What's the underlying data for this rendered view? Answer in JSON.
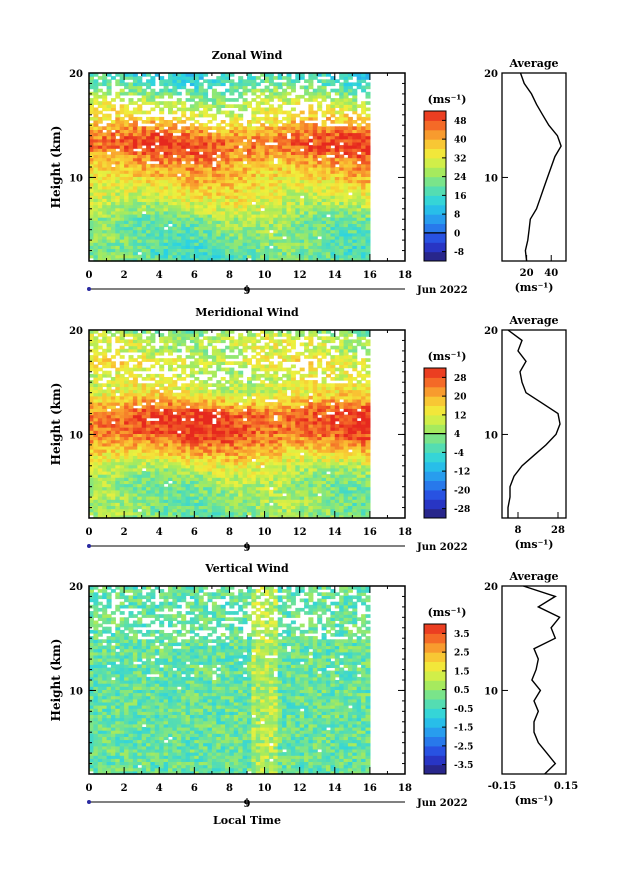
{
  "chart_data": [
    {
      "type": "heatmap",
      "title": "Zonal Wind",
      "xlabel": "",
      "ylabel": "Height (km)",
      "x_ticks": [
        "0",
        "2",
        "4",
        "6",
        "8",
        "10",
        "12",
        "14",
        "16",
        "18"
      ],
      "xlim": [
        0,
        18
      ],
      "y_ticks": [
        "10",
        "20"
      ],
      "ylim": [
        2,
        20
      ],
      "data_extent_x": [
        0,
        16
      ],
      "date_label": "Jun 2022",
      "day_label": "9",
      "colorbar_unit": "(ms⁻¹)",
      "colorbar_ticks": [
        "-8",
        "0",
        "8",
        "16",
        "24",
        "32",
        "40",
        "48"
      ],
      "colorbar_range": [
        -12,
        52
      ],
      "profile": {
        "title": "Average",
        "xlabel": "(ms⁻¹)",
        "x_ticks": [
          "20",
          "40"
        ],
        "xlim": [
          0,
          52
        ],
        "height": [
          2,
          3,
          4,
          5,
          6,
          7,
          8,
          9,
          10,
          11,
          12,
          13,
          14,
          15,
          16,
          17,
          18,
          19,
          20
        ],
        "values": [
          20,
          19,
          21,
          22,
          23,
          28,
          31,
          34,
          37,
          40,
          43,
          48,
          45,
          38,
          33,
          28,
          24,
          18,
          15
        ]
      }
    },
    {
      "type": "heatmap",
      "title": "Meridional Wind",
      "xlabel": "",
      "ylabel": "Height (km)",
      "x_ticks": [
        "0",
        "2",
        "4",
        "6",
        "8",
        "10",
        "12",
        "14",
        "16",
        "18"
      ],
      "xlim": [
        0,
        18
      ],
      "y_ticks": [
        "10",
        "20"
      ],
      "ylim": [
        2,
        20
      ],
      "data_extent_x": [
        0,
        16
      ],
      "date_label": "Jun 2022",
      "day_label": "9",
      "colorbar_unit": "(ms⁻¹)",
      "colorbar_ticks": [
        "-28",
        "-20",
        "-12",
        "-4",
        "4",
        "12",
        "20",
        "28"
      ],
      "colorbar_range": [
        -32,
        32
      ],
      "profile": {
        "title": "Average",
        "xlabel": "(ms⁻¹)",
        "x_ticks": [
          "8",
          "28"
        ],
        "xlim": [
          0,
          32
        ],
        "height": [
          2,
          3,
          4,
          5,
          6,
          7,
          8,
          9,
          10,
          11,
          12,
          13,
          14,
          15,
          16,
          17,
          18,
          19,
          20
        ],
        "values": [
          3,
          3,
          4,
          4,
          6,
          10,
          16,
          22,
          27,
          29,
          28,
          20,
          12,
          10,
          9,
          12,
          8,
          10,
          3
        ]
      }
    },
    {
      "type": "heatmap",
      "title": "Vertical Wind",
      "xlabel": "Local Time",
      "ylabel": "Height (km)",
      "x_ticks": [
        "0",
        "2",
        "4",
        "6",
        "8",
        "10",
        "12",
        "14",
        "16",
        "18"
      ],
      "xlim": [
        0,
        18
      ],
      "y_ticks": [
        "10",
        "20"
      ],
      "ylim": [
        2,
        20
      ],
      "data_extent_x": [
        0,
        16
      ],
      "date_label": "Jun 2022",
      "day_label": "9",
      "colorbar_unit": "(ms⁻¹)",
      "colorbar_ticks": [
        "-3.5",
        "-2.5",
        "-1.5",
        "-0.5",
        "0.5",
        "1.5",
        "2.5",
        "3.5"
      ],
      "colorbar_range": [
        -4,
        4
      ],
      "profile": {
        "title": "Average",
        "xlabel": "(ms⁻¹)",
        "x_ticks": [
          "-0.15",
          "0.15"
        ],
        "xlim": [
          -0.15,
          0.15
        ],
        "height": [
          2,
          3,
          4,
          5,
          6,
          7,
          8,
          9,
          10,
          11,
          12,
          13,
          14,
          15,
          16,
          17,
          18,
          19,
          20
        ],
        "values": [
          0.05,
          0.1,
          0.06,
          0.02,
          0.0,
          0.0,
          0.02,
          0.0,
          0.03,
          -0.01,
          0.01,
          0.02,
          0.0,
          0.1,
          0.08,
          0.12,
          0.02,
          0.1,
          -0.05
        ]
      }
    }
  ]
}
